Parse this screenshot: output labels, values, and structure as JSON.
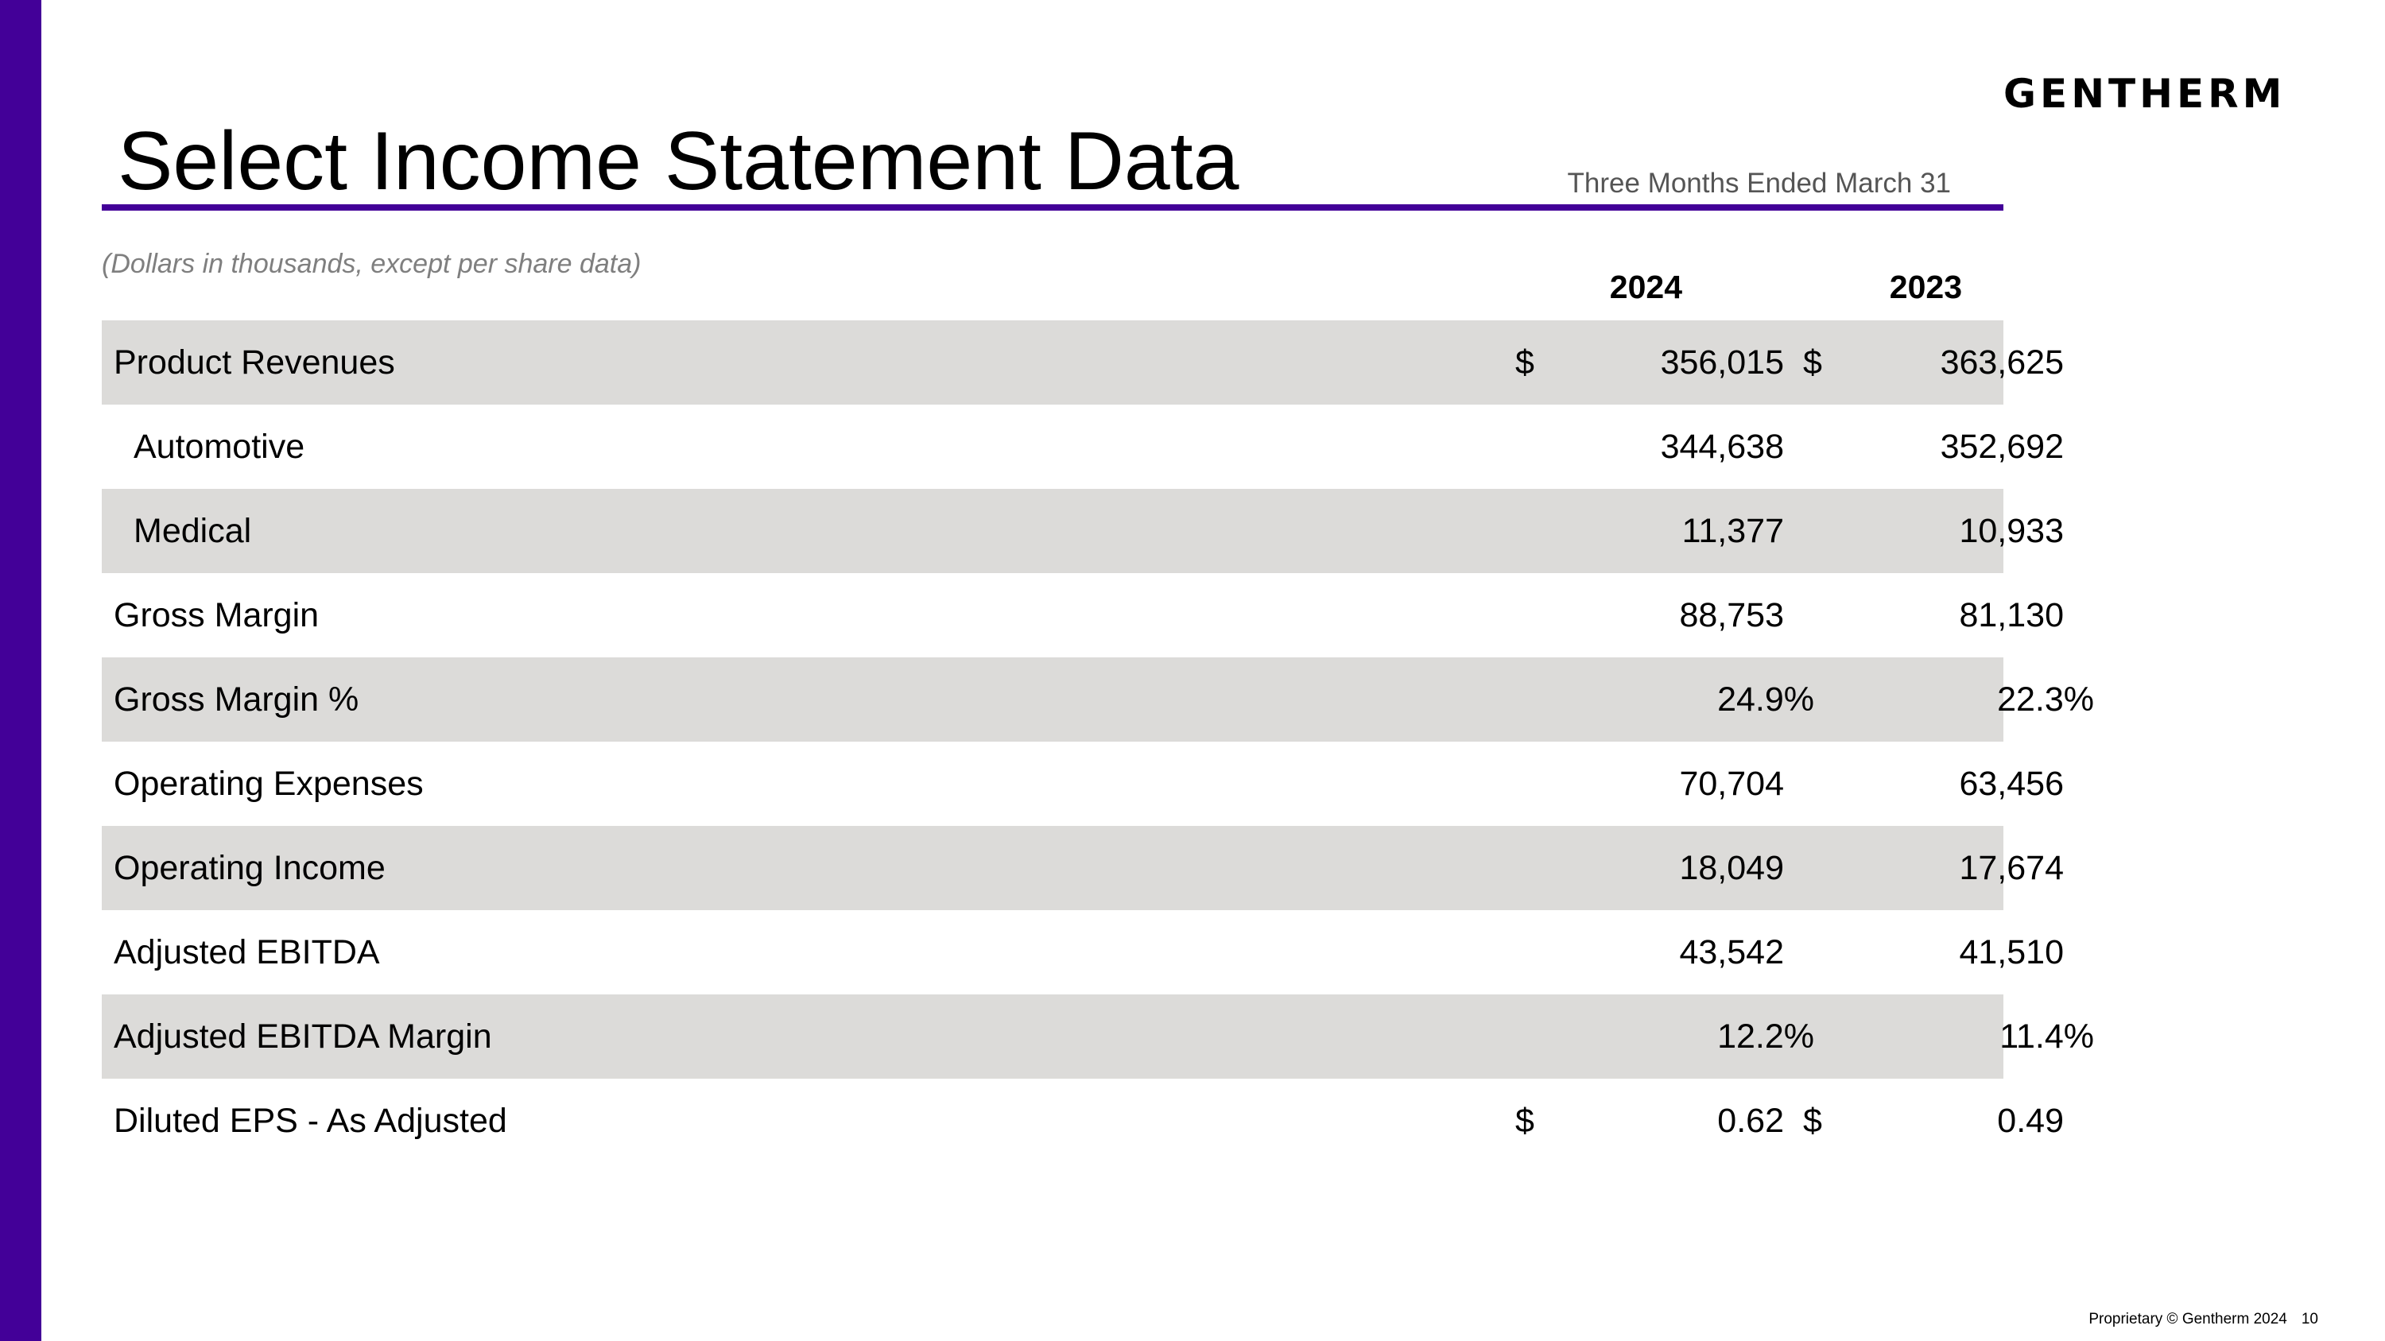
{
  "header": {
    "title": "Select Income Statement Data",
    "logo_text": "GENTHERM",
    "period_label": "Three Months Ended March 31",
    "units_note": "(Dollars in thousands, except per share data)"
  },
  "columns": [
    "2024",
    "2023"
  ],
  "rows": [
    {
      "label": "Product Revenues",
      "dollar_2024": "$",
      "value_2024": "356,015",
      "dollar_2023": "$",
      "value_2023": "363,625"
    },
    {
      "label": "Automotive",
      "dollar_2024": "",
      "value_2024": "344,638",
      "dollar_2023": "",
      "value_2023": "352,692"
    },
    {
      "label": "Medical",
      "dollar_2024": "",
      "value_2024": "11,377",
      "dollar_2023": "",
      "value_2023": "10,933"
    },
    {
      "label": "Gross Margin",
      "dollar_2024": "",
      "value_2024": "88,753",
      "dollar_2023": "",
      "value_2023": "81,130"
    },
    {
      "label": "Gross Margin %",
      "dollar_2024": "",
      "value_2024": "24.9%",
      "dollar_2023": "",
      "value_2023": "22.3%"
    },
    {
      "label": "Operating Expenses",
      "dollar_2024": "",
      "value_2024": "70,704",
      "dollar_2023": "",
      "value_2023": "63,456"
    },
    {
      "label": "Operating Income",
      "dollar_2024": "",
      "value_2024": "18,049",
      "dollar_2023": "",
      "value_2023": "17,674"
    },
    {
      "label": "Adjusted EBITDA",
      "dollar_2024": "",
      "value_2024": "43,542",
      "dollar_2023": "",
      "value_2023": "41,510"
    },
    {
      "label": "Adjusted EBITDA Margin",
      "dollar_2024": "",
      "value_2024": "12.2%",
      "dollar_2023": "",
      "value_2023": "11.4%"
    },
    {
      "label": "Diluted EPS - As Adjusted",
      "dollar_2024": "$",
      "value_2024": "0.62",
      "dollar_2023": "$",
      "value_2023": "0.49"
    }
  ],
  "footer": {
    "copyright": "Proprietary © Gentherm 2024",
    "page_number": "10"
  },
  "colors": {
    "accent": "#430098",
    "row_shade": "#dcdbd9"
  }
}
